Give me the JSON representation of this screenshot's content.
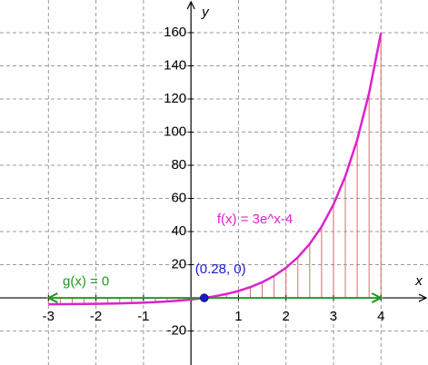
{
  "chart_data": {
    "type": "function-plot",
    "x_label": "x",
    "y_label": "y",
    "xlim": [
      -4.02,
      4.99
    ],
    "ylim": [
      -40.5,
      179.7
    ],
    "xticks": [
      -3,
      -2,
      -1,
      1,
      2,
      3,
      4
    ],
    "yticks": [
      -20,
      20,
      40,
      60,
      80,
      100,
      120,
      140,
      160
    ],
    "grid": true,
    "series": [
      {
        "name": "f(x) = 3e^x-4",
        "color": "#dd22cc",
        "hatch_color": "#e06a6a",
        "x": [
          -3,
          -2.75,
          -2.5,
          -2.25,
          -2,
          -1.75,
          -1.5,
          -1.25,
          -1,
          -0.75,
          -0.5,
          -0.25,
          0,
          0.25,
          0.5,
          0.75,
          1,
          1.25,
          1.5,
          1.75,
          2,
          2.25,
          2.5,
          2.75,
          3,
          3.25,
          3.5,
          3.75,
          4
        ],
        "values": [
          -3.85,
          -3.81,
          -3.75,
          -3.68,
          -3.59,
          -3.48,
          -3.33,
          -3.14,
          -2.9,
          -2.58,
          -2.18,
          -1.66,
          -1,
          -0.15,
          0.95,
          2.35,
          4.15,
          6.47,
          9.45,
          13.26,
          18.17,
          24.46,
          32.55,
          42.93,
          56.26,
          73.37,
          95.35,
          123.56,
          159.79
        ]
      },
      {
        "name": "g(x) = 0",
        "color": "#229922",
        "x": [
          -3,
          4
        ],
        "values": [
          0,
          0
        ]
      }
    ],
    "points": [
      {
        "label": "(0.28, 0)",
        "x": 0.28,
        "y": 0,
        "color": "#1a1acc"
      }
    ]
  }
}
